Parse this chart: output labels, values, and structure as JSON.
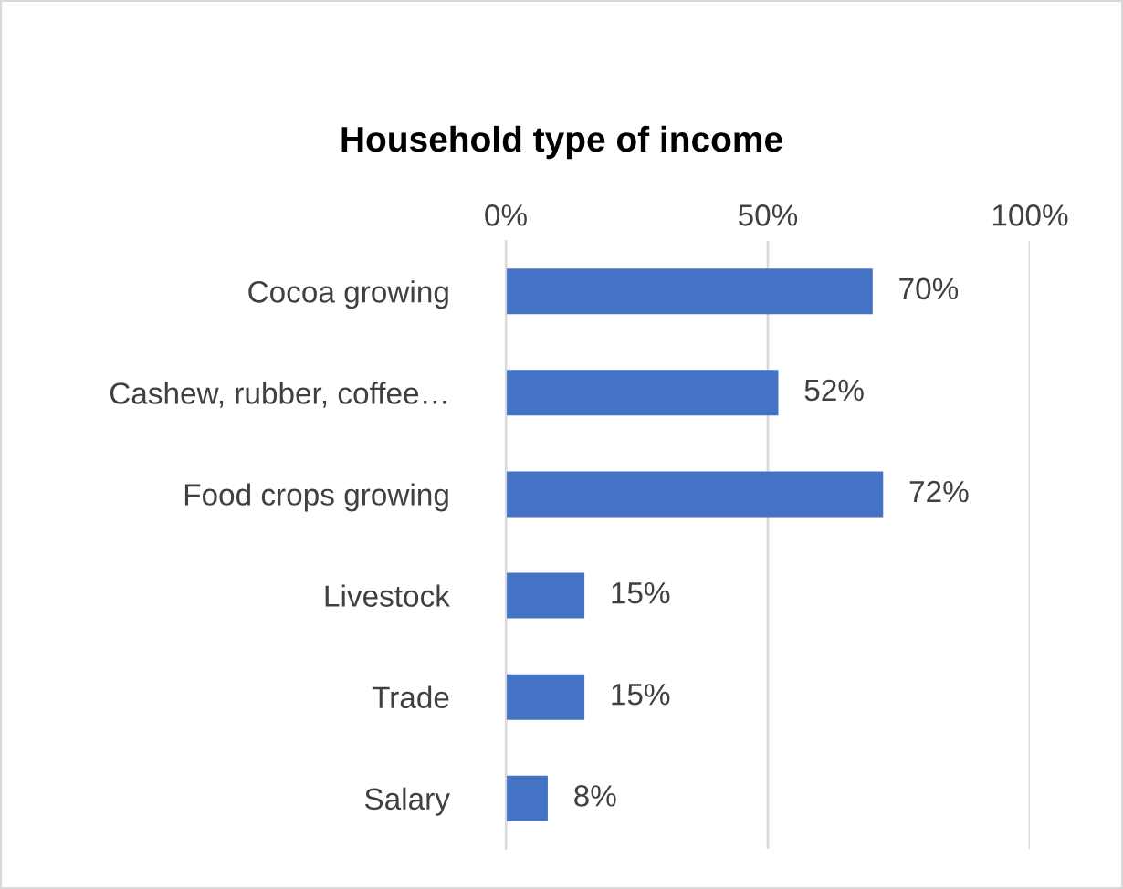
{
  "chart_data": {
    "type": "bar",
    "orientation": "horizontal",
    "title": "Household type of income",
    "categories": [
      "Cocoa growing",
      "Cashew, rubber, coffee…",
      "Food crops growing",
      "Livestock",
      "Trade",
      "Salary"
    ],
    "values": [
      70,
      52,
      72,
      15,
      15,
      8
    ],
    "value_labels": [
      "70%",
      "52%",
      "72%",
      "15%",
      "15%",
      "8%"
    ],
    "color": "#4472c4",
    "xlim": [
      0,
      100
    ],
    "xticks": [
      {
        "value": 0,
        "label": "0%"
      },
      {
        "value": 50,
        "label": "50%"
      },
      {
        "value": 100,
        "label": "100%"
      }
    ],
    "grid": "x",
    "legend": false
  }
}
